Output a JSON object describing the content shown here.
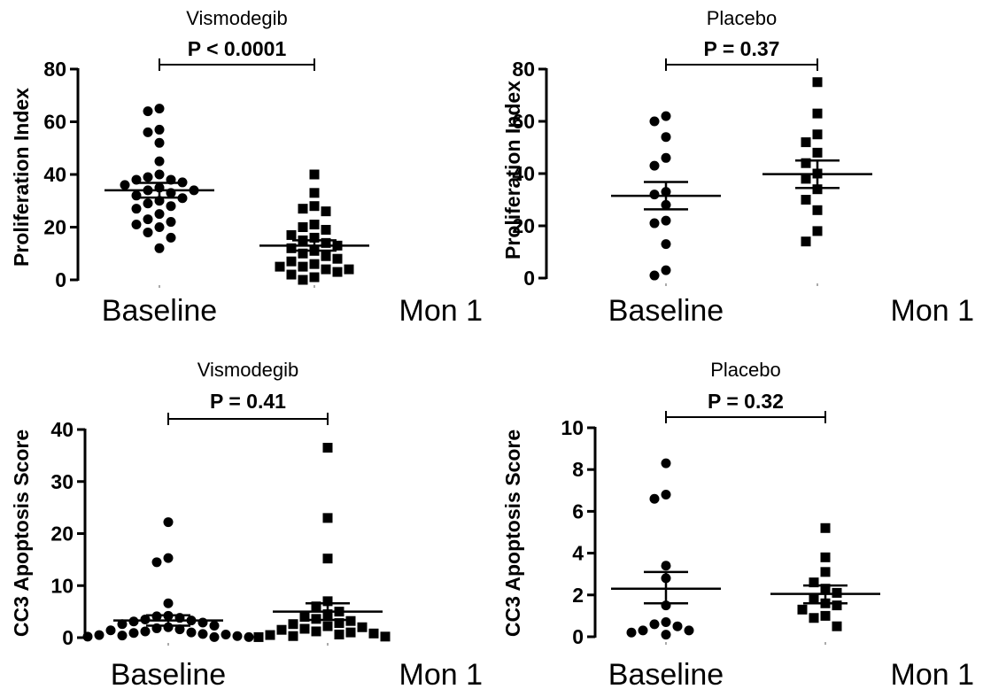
{
  "chart_data": [
    {
      "type": "scatter",
      "title": "Vismodegib",
      "annotation": "P < 0.0001",
      "ylabel": "Proliferation Index",
      "ylim": [
        0,
        80
      ],
      "yticks": [
        "0",
        "20",
        "40",
        "60",
        "80"
      ],
      "categories": [
        "Baseline",
        "Mon 1"
      ],
      "series": [
        {
          "marker": "circle",
          "values": [
            65,
            64,
            57,
            56,
            52,
            45,
            40,
            39,
            38,
            38,
            37,
            36,
            35,
            34,
            34,
            33,
            32,
            31,
            30,
            29,
            28,
            27,
            25,
            23,
            22,
            21,
            20,
            18,
            16,
            12
          ],
          "mean": 34,
          "sem_low": 31.2,
          "sem_high": 36.8
        },
        {
          "marker": "square",
          "values": [
            40,
            33,
            28,
            27,
            26,
            21,
            20,
            19,
            17,
            16,
            15,
            14,
            13,
            12,
            11,
            10,
            9,
            8,
            7,
            6,
            5,
            5,
            4,
            4,
            3,
            2,
            1,
            0
          ],
          "mean": 13,
          "sem_low": 11.1,
          "sem_high": 15
        }
      ]
    },
    {
      "type": "scatter",
      "title": "Placebo",
      "annotation": "P = 0.37",
      "ylabel": "Proliferation Index",
      "ylim": [
        0,
        80
      ],
      "yticks": [
        "0",
        "20",
        "40",
        "60",
        "80"
      ],
      "categories": [
        "Baseline",
        "Mon 1"
      ],
      "series": [
        {
          "marker": "circle",
          "values": [
            62,
            60,
            54,
            46,
            43,
            33,
            32,
            28,
            22,
            21,
            13,
            3,
            1
          ],
          "mean": 31.5,
          "sem_low": 26.3,
          "sem_high": 36.8
        },
        {
          "marker": "square",
          "values": [
            75,
            63,
            55,
            52,
            48,
            44,
            40,
            38,
            34,
            30,
            26,
            18,
            14
          ],
          "mean": 39.8,
          "sem_low": 34.5,
          "sem_high": 45
        }
      ]
    },
    {
      "type": "scatter",
      "title": "Vismodegib",
      "annotation": "P = 0.41",
      "ylabel": "CC3 Apoptosis Score",
      "ylim": [
        0,
        40
      ],
      "yticks": [
        "0",
        "10",
        "20",
        "30",
        "40"
      ],
      "categories": [
        "Baseline",
        "Mon 1"
      ],
      "series": [
        {
          "marker": "circle",
          "values": [
            22.2,
            15.3,
            14.5,
            6.6,
            4.2,
            4.1,
            3.8,
            3.5,
            3.3,
            3.1,
            2.9,
            2.6,
            2.3,
            2.0,
            1.8,
            1.6,
            1.4,
            1.2,
            1.0,
            0.9,
            0.7,
            0.6,
            0.5,
            0.4,
            0.3,
            0.2,
            0.1,
            0.1
          ],
          "mean": 3.3,
          "sem_low": 2.3,
          "sem_high": 4.3
        },
        {
          "marker": "square",
          "values": [
            36.5,
            23.0,
            15.2,
            7.0,
            6.0,
            5.0,
            4.5,
            4.0,
            3.6,
            3.2,
            2.8,
            2.6,
            2.2,
            2.0,
            1.7,
            1.5,
            1.2,
            1.0,
            0.8,
            0.6,
            0.5,
            0.3,
            0.2,
            0.1
          ],
          "mean": 5.0,
          "sem_low": 3.4,
          "sem_high": 6.6
        }
      ]
    },
    {
      "type": "scatter",
      "title": "Placebo",
      "annotation": "P = 0.32",
      "ylabel": "CC3 Apoptosis Score",
      "ylim": [
        0,
        10
      ],
      "yticks": [
        "0",
        "2",
        "4",
        "6",
        "8",
        "10"
      ],
      "categories": [
        "Baseline",
        "Mon 1"
      ],
      "series": [
        {
          "marker": "circle",
          "values": [
            8.3,
            6.8,
            6.6,
            3.4,
            2.8,
            1.5,
            0.7,
            0.6,
            0.5,
            0.3,
            0.3,
            0.2,
            0.1
          ],
          "mean": 2.3,
          "sem_low": 1.6,
          "sem_high": 3.1
        },
        {
          "marker": "square",
          "values": [
            5.2,
            3.8,
            3.1,
            2.6,
            2.3,
            2.1,
            1.8,
            1.6,
            1.5,
            1.3,
            1.0,
            0.9,
            0.5
          ],
          "mean": 2.05,
          "sem_low": 1.6,
          "sem_high": 2.45
        }
      ]
    }
  ]
}
